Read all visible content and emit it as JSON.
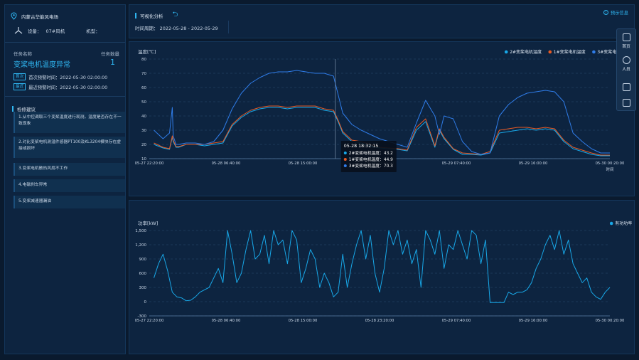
{
  "left": {
    "location": "内蒙古华能风电场",
    "device_label": "设备：",
    "device_value": "07#风机",
    "model_label": "机型：",
    "model_value": "",
    "task_label": "任务名称",
    "task_count_label": "任务数量",
    "task_name": "变桨电机温度异常",
    "task_count": "1",
    "first_tag": "首次",
    "first_warn": "首次预警时间：2022-05-30 02:00:00",
    "last_tag": "最近",
    "last_warn": "最近预警时间：2022-05-30 02:00:00",
    "suggest_title": "检修建议",
    "suggestions": [
      "1.从中控调取三个变桨温度进行观测，温度是否存在不一致现象",
      "2.对比变桨电机测温件感器PT100及KL3204模块存在虚接或损坏",
      "3.变桨电机散热风扇不工作",
      "4.电磁刹车异常",
      "5.变桨减速器漏油"
    ]
  },
  "topbar": {
    "title": "可视化分析",
    "back_icon": "back-arrow-icon",
    "hint": "预示信息",
    "time_range": "时间周期： 2022-05-28 - 2022-05-29"
  },
  "toolbar": {
    "items": [
      "首页",
      "人员",
      "",
      ""
    ]
  },
  "charts": {
    "temperature": {
      "ylabel": "温度[℃]",
      "xlabel": "时间",
      "legend": [
        "2#变桨电机温度",
        "1#变桨电机温度",
        "3#变桨电机温度"
      ],
      "tooltip": {
        "time": "05-28 18:32:15",
        "rows": [
          "2#变桨电机温度：43.2",
          "1#变桨电机温度：44.9",
          "3#变桨电机温度：70.3"
        ]
      }
    },
    "power": {
      "ylabel": "功率[kW]",
      "legend": [
        "有功功率"
      ]
    }
  },
  "chart_data": [
    {
      "type": "line",
      "ylabel": "温度[℃]",
      "xlabel": "时间",
      "ylim": [
        10,
        80
      ],
      "yticks": [
        10,
        20,
        30,
        40,
        50,
        60,
        70,
        80
      ],
      "x_tick_labels": [
        "05-27 22:20:00",
        "05-28 06:40:00",
        "05-28 15:00:00",
        "05-28 23:20:00",
        "05-29 07:40:00",
        "05-29 16:00:00",
        "05-30 00:20:00"
      ],
      "x_range_hours": [
        0,
        50
      ],
      "grid": true,
      "legend_position": "top-right",
      "colors": {
        "2#变桨电机温度": "#18a8e8",
        "1#变桨电机温度": "#e85a24",
        "3#变桨电机温度": "#2f7ce8"
      },
      "series": [
        {
          "name": "2#变桨电机温度",
          "x": [
            0.5,
            1.5,
            2.2,
            2.5,
            2.6,
            2.9,
            3.2,
            4,
            5,
            6,
            7,
            8,
            9,
            10,
            11,
            12,
            13,
            14,
            15,
            16,
            17,
            18,
            19,
            20,
            20.5,
            21,
            22,
            23,
            24,
            25,
            26,
            27,
            28,
            29,
            30,
            31,
            31.5,
            32,
            33,
            34,
            35,
            36,
            37,
            38,
            39,
            40,
            41,
            42,
            43,
            44,
            45,
            46,
            47,
            48,
            49,
            50
          ],
          "y": [
            20,
            17.5,
            16.5,
            25,
            22,
            18,
            18,
            20,
            20,
            19,
            20,
            21,
            33,
            39,
            43,
            45,
            46,
            46,
            45,
            46,
            46,
            46,
            44,
            43,
            36,
            28,
            22,
            21,
            19,
            17.5,
            17,
            16.5,
            15.5,
            30,
            36,
            18,
            30,
            24,
            16.5,
            13,
            13,
            12.5,
            14,
            28,
            29,
            30,
            31,
            30,
            31,
            30,
            22,
            17,
            15,
            13,
            12,
            12
          ]
        },
        {
          "name": "1#变桨电机温度",
          "x": [
            0.5,
            1.5,
            2.2,
            2.5,
            2.6,
            2.9,
            3.2,
            4,
            5,
            6,
            7,
            8,
            9,
            10,
            11,
            12,
            13,
            14,
            15,
            16,
            17,
            18,
            19,
            20,
            20.5,
            21,
            22,
            23,
            24,
            25,
            26,
            27,
            28,
            29,
            30,
            31,
            31.5,
            32,
            33,
            34,
            35,
            36,
            37,
            38,
            39,
            40,
            41,
            42,
            43,
            44,
            45,
            46,
            47,
            48,
            49,
            50
          ],
          "y": [
            21,
            18,
            17,
            26,
            23,
            18.5,
            18.5,
            20,
            20,
            20,
            21,
            22,
            34,
            40,
            44,
            46,
            47,
            47,
            46,
            47,
            47,
            47,
            45,
            44,
            37,
            29,
            23,
            22,
            20,
            18,
            17.5,
            17,
            16,
            32,
            38,
            19,
            31,
            25,
            17,
            14,
            13.5,
            13,
            15,
            30,
            31,
            32,
            32,
            31,
            32,
            31,
            23,
            18,
            16,
            14,
            12.5,
            12.5
          ]
        },
        {
          "name": "3#变桨电机温度",
          "x": [
            0.5,
            1.5,
            2.2,
            2.5,
            2.6,
            2.9,
            3.2,
            4,
            5,
            6,
            7,
            8,
            9,
            10,
            11,
            12,
            13,
            14,
            15,
            16,
            17,
            18,
            19,
            20,
            20.5,
            21,
            22,
            23,
            24,
            25,
            26,
            27,
            28,
            29,
            30,
            31,
            31.5,
            32,
            33,
            34,
            35,
            36,
            37,
            38,
            39,
            40,
            41,
            42,
            43,
            44,
            45,
            46,
            47,
            48,
            49,
            50
          ],
          "y": [
            30,
            24,
            28,
            46,
            26,
            20,
            20,
            21,
            21,
            20,
            22,
            30,
            45,
            56,
            63,
            67,
            70,
            71,
            71,
            72,
            71,
            70,
            70,
            68,
            55,
            42,
            34,
            30,
            27,
            24,
            22,
            20,
            18,
            35,
            51,
            40,
            27,
            40,
            38,
            22,
            15,
            13,
            14,
            40,
            48,
            53,
            56,
            57,
            58,
            57,
            50,
            28,
            22,
            17,
            14,
            14
          ]
        }
      ]
    },
    {
      "type": "line",
      "ylabel": "功率[kW]",
      "ylim": [
        -300,
        1500
      ],
      "yticks": [
        -300,
        0,
        300,
        600,
        900,
        1200,
        1500
      ],
      "x_tick_labels": [
        "05-27 22:20:00",
        "05-28 06:40:00",
        "05-28 15:00:00",
        "05-28 23:20:00",
        "05-29 07:40:00",
        "05-29 16:00:00",
        "05-30 00:20:00"
      ],
      "x_range_hours": [
        0,
        50
      ],
      "grid": true,
      "legend_position": "top-right",
      "colors": {
        "有功功率": "#18a8e8"
      },
      "series": [
        {
          "name": "有功功率",
          "x": [
            0.5,
            1,
            1.5,
            2,
            2.5,
            3,
            3.5,
            4,
            4.5,
            5,
            5.5,
            6,
            6.5,
            7,
            7.5,
            8,
            8.5,
            9,
            9.5,
            10,
            10.5,
            11,
            11.5,
            12,
            12.5,
            13,
            13.5,
            14,
            14.5,
            15,
            15.5,
            16,
            16.5,
            17,
            17.5,
            18,
            18.5,
            19,
            19.5,
            20,
            20.5,
            21,
            21.5,
            22,
            22.5,
            23,
            23.5,
            24,
            24.5,
            25,
            25.5,
            26,
            26.5,
            27,
            27.5,
            28,
            28.5,
            29,
            29.5,
            30,
            30.5,
            31,
            31.5,
            32,
            32.5,
            33,
            33.5,
            34,
            34.5,
            35,
            35.5,
            36,
            36.5,
            37,
            37.5,
            38,
            38.5,
            39,
            39.5,
            40,
            40.5,
            41,
            41.5,
            42,
            42.5,
            43,
            43.5,
            44,
            44.5,
            45,
            45.5,
            46,
            46.5,
            47,
            47.5,
            48,
            48.5,
            49,
            49.5,
            50
          ],
          "y": [
            500,
            800,
            1000,
            650,
            200,
            100,
            80,
            20,
            30,
            100,
            200,
            250,
            300,
            500,
            700,
            400,
            1500,
            1000,
            400,
            600,
            1100,
            1500,
            900,
            1000,
            1400,
            800,
            1500,
            1200,
            1300,
            800,
            1500,
            1300,
            400,
            700,
            1100,
            900,
            300,
            600,
            400,
            100,
            200,
            1000,
            300,
            800,
            1200,
            1500,
            900,
            1400,
            600,
            200,
            700,
            1500,
            1200,
            1500,
            1000,
            1300,
            800,
            1100,
            300,
            1500,
            1300,
            1000,
            1500,
            700,
            1200,
            1100,
            1500,
            1200,
            900,
            1500,
            1400,
            800,
            1300,
            -20,
            -20,
            -20,
            -20,
            200,
            150,
            200,
            200,
            250,
            400,
            700,
            900,
            1200,
            1400,
            1100,
            1500,
            1000,
            1300,
            800,
            600,
            400,
            500,
            200,
            100,
            50,
            200,
            300
          ]
        }
      ]
    }
  ]
}
